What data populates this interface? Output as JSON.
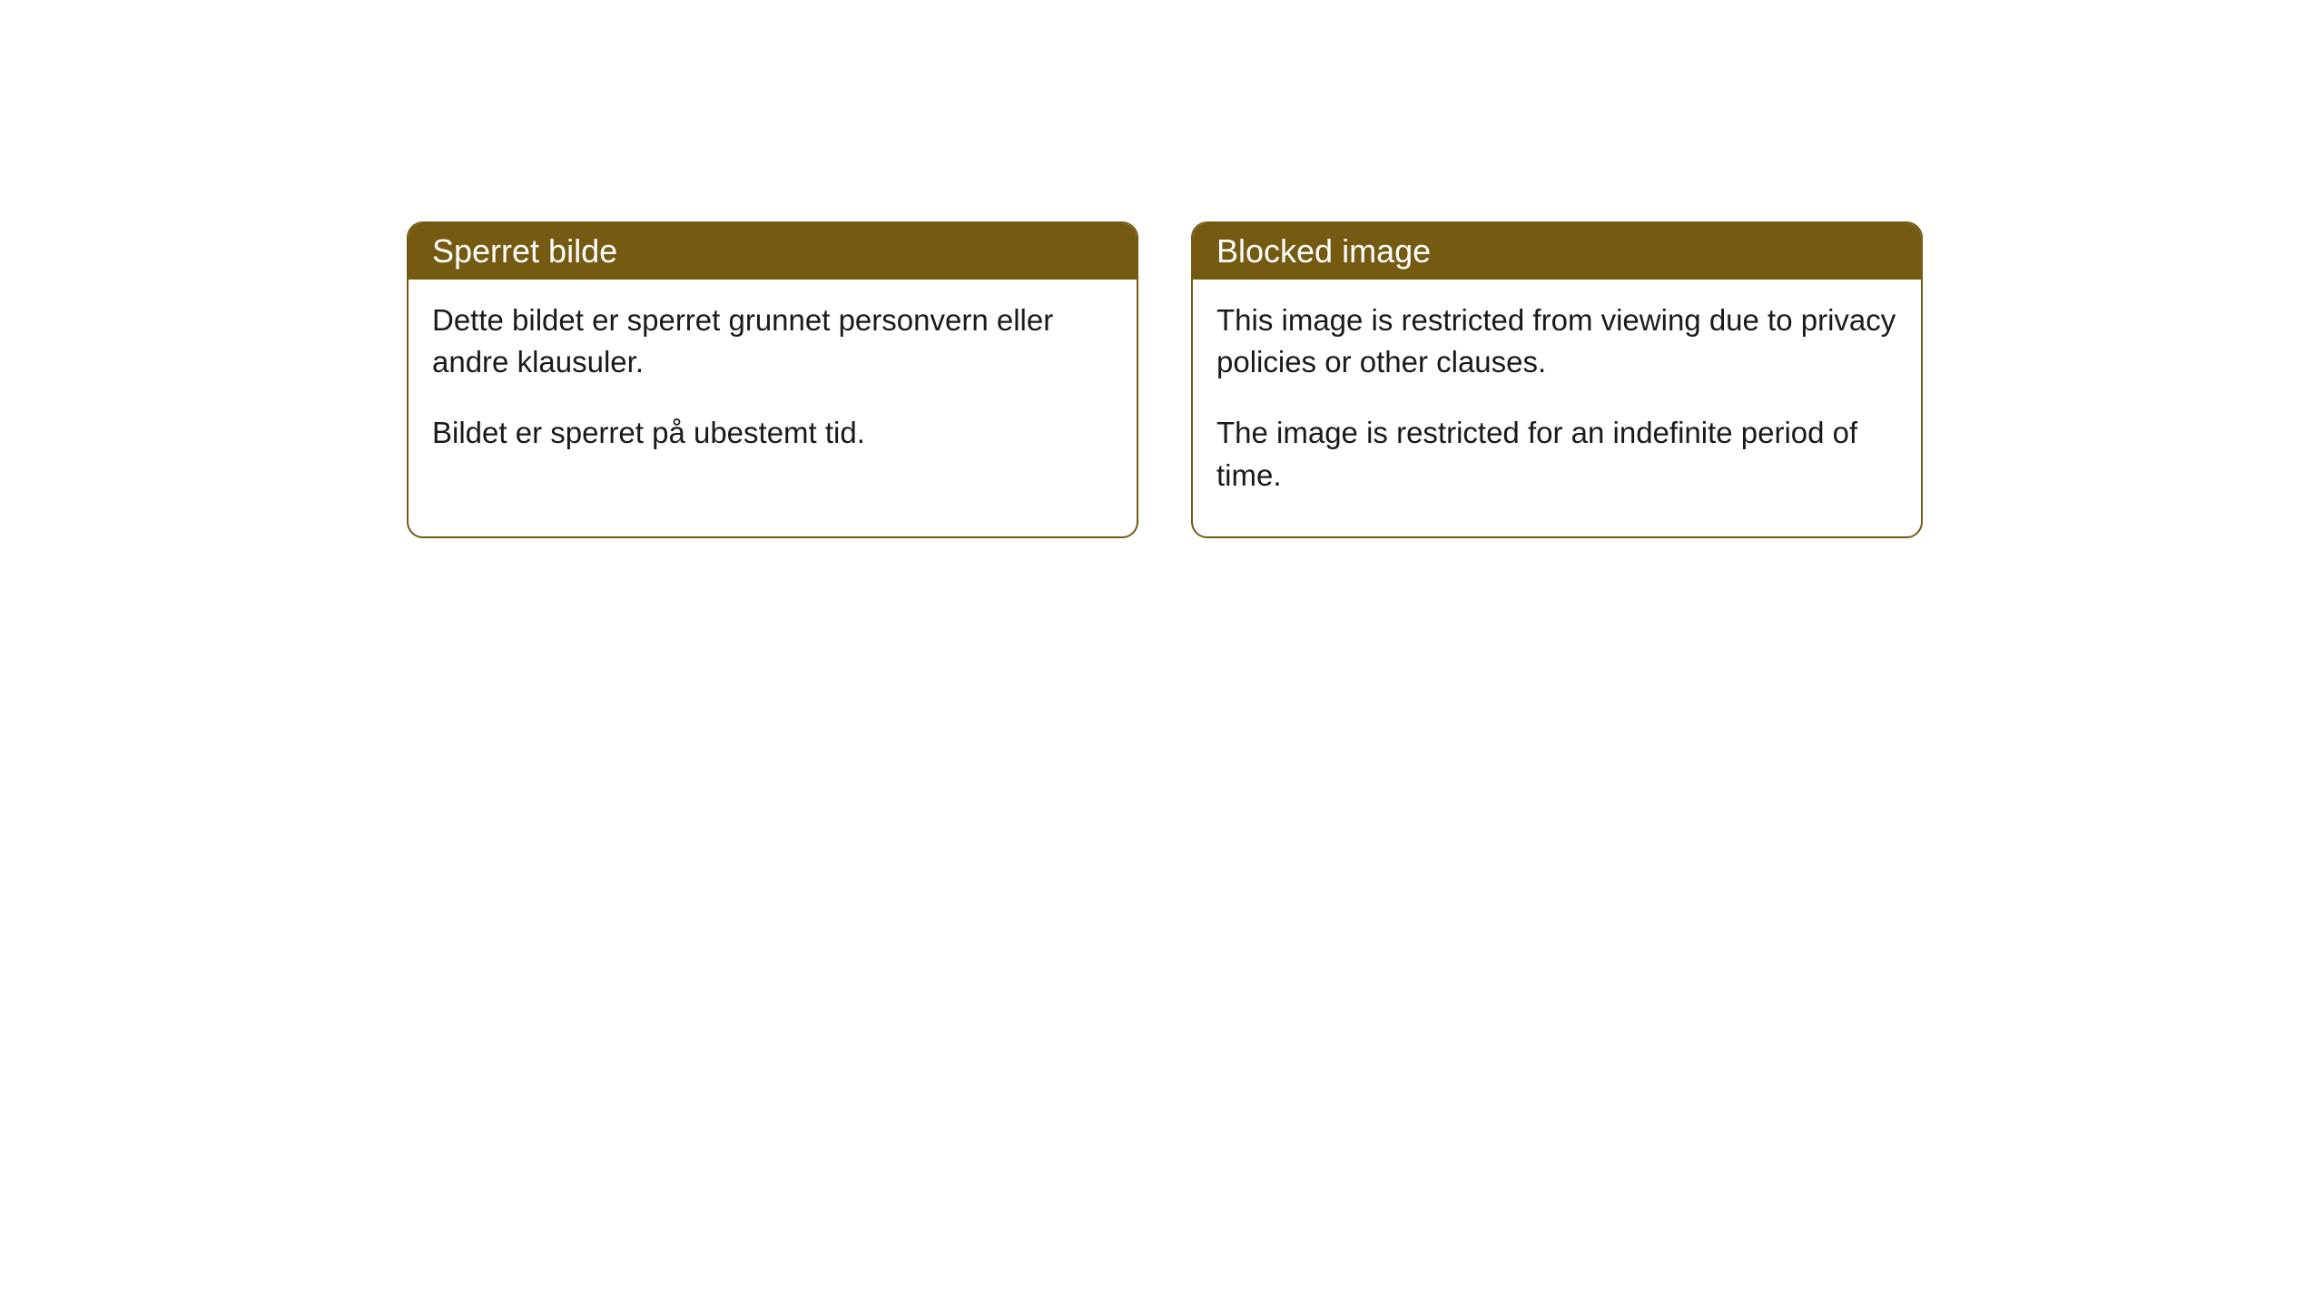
{
  "cards": [
    {
      "title": "Sperret bilde",
      "paragraph1": "Dette bildet er sperret grunnet personvern eller andre klausuler.",
      "paragraph2": "Bildet er sperret på ubestemt tid."
    },
    {
      "title": "Blocked image",
      "paragraph1": "This image is restricted from viewing due to privacy policies or other clauses.",
      "paragraph2": "The image is restricted for an indefinite period of time."
    }
  ],
  "styling": {
    "header_background": "#755a12",
    "header_text_color": "#ffffff",
    "border_color": "#755a12",
    "body_text_color": "#1a1a1a",
    "card_background": "#ffffff",
    "page_background": "#ffffff",
    "border_radius": 18,
    "header_fontsize": 36,
    "body_fontsize": 33
  }
}
